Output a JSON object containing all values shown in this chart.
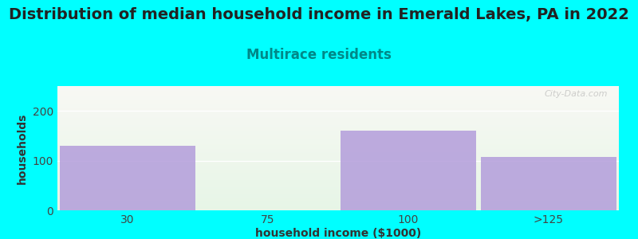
{
  "title": "Distribution of median household income in Emerald Lakes, PA in 2022",
  "subtitle": "Multirace residents",
  "xlabel": "household income ($1000)",
  "ylabel": "households",
  "categories": [
    "30",
    "75",
    "100",
    ">125"
  ],
  "values": [
    130,
    0,
    160,
    108
  ],
  "bar_color": "#b39ddb",
  "background_color": "#00ffff",
  "plot_bg_color_top": "#e6f5e6",
  "plot_bg_color_bottom": "#f8f8f4",
  "ylim": [
    0,
    250
  ],
  "yticks": [
    0,
    100,
    200
  ],
  "title_fontsize": 14,
  "subtitle_fontsize": 12,
  "subtitle_color": "#008888",
  "axis_label_fontsize": 10,
  "tick_fontsize": 10,
  "watermark": "City-Data.com"
}
